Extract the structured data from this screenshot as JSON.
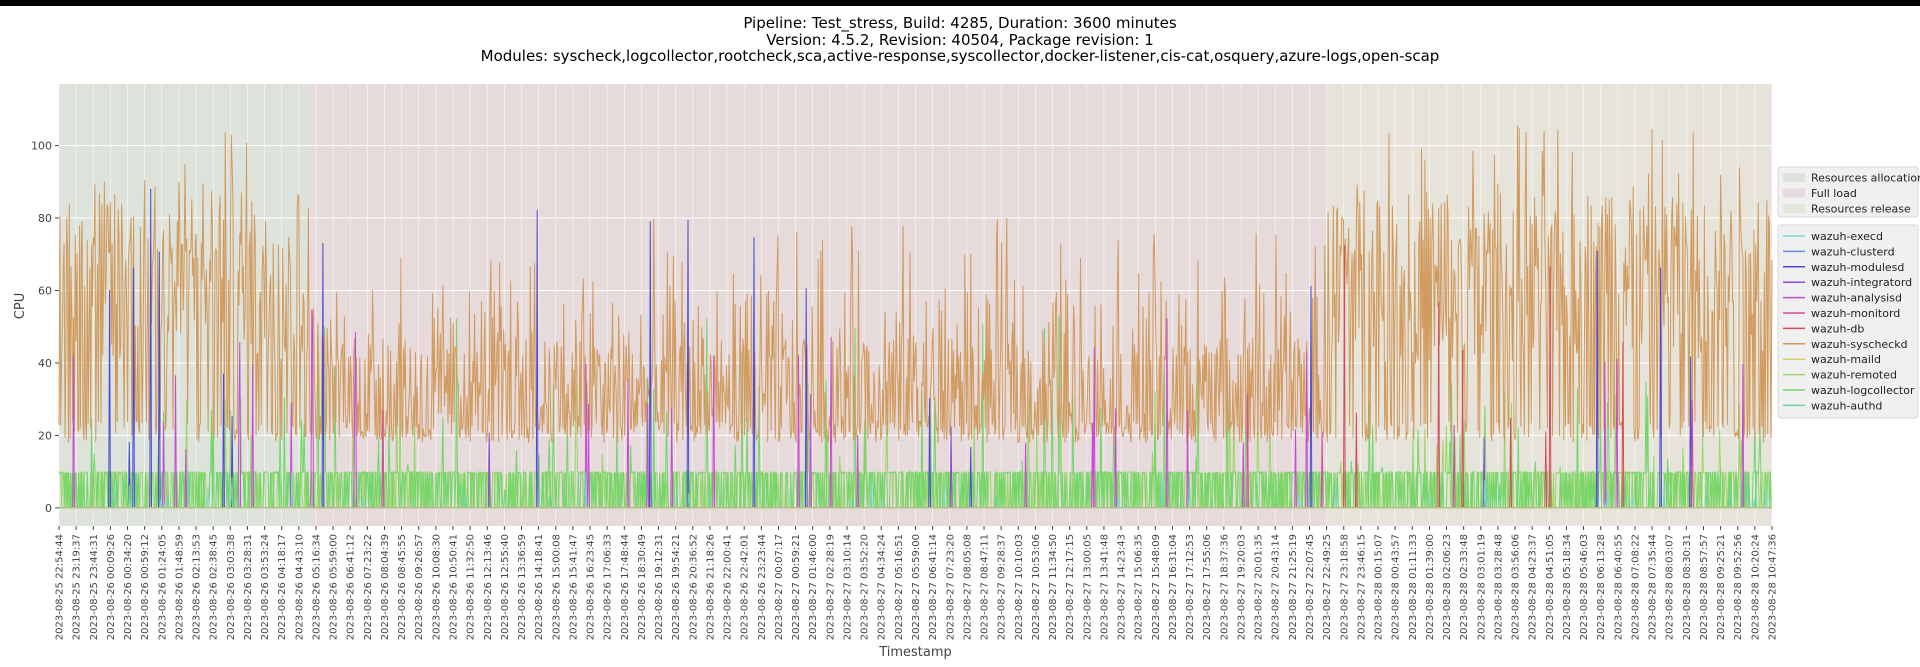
{
  "chart_data": {
    "type": "line",
    "title_lines": [
      "Pipeline: Test_stress, Build: 4285, Duration: 3600 minutes",
      "Version: 4.5.2, Revision: 40504, Package revision: 1",
      "Modules: syscheck,logcollector,rootcheck,sca,active-response,syscollector,docker-listener,cis-cat,osquery,azure-logs,open-scap"
    ],
    "xlabel": "Timestamp",
    "ylabel": "CPU",
    "ylim": [
      -5,
      117
    ],
    "yticks": [
      0,
      20,
      40,
      60,
      80,
      100
    ],
    "grid": true,
    "x_tick_labels": [
      "2023-08-25 22:54:44",
      "2023-08-25 23:19:37",
      "2023-08-25 23:44:31",
      "2023-08-26 00:09:26",
      "2023-08-26 00:34:20",
      "2023-08-26 00:59:12",
      "2023-08-26 01:24:05",
      "2023-08-26 01:48:59",
      "2023-08-26 02:13:53",
      "2023-08-26 02:38:45",
      "2023-08-26 03:03:38",
      "2023-08-26 03:28:31",
      "2023-08-26 03:53:24",
      "2023-08-26 04:18:17",
      "2023-08-26 04:43:10",
      "2023-08-26 05:16:34",
      "2023-08-26 05:59:00",
      "2023-08-26 06:41:12",
      "2023-08-26 07:23:22",
      "2023-08-26 08:04:39",
      "2023-08-26 08:45:55",
      "2023-08-26 09:26:57",
      "2023-08-26 10:08:30",
      "2023-08-26 10:50:41",
      "2023-08-26 11:32:50",
      "2023-08-26 12:13:46",
      "2023-08-26 12:55:40",
      "2023-08-26 13:36:59",
      "2023-08-26 14:18:41",
      "2023-08-26 15:00:08",
      "2023-08-26 15:41:47",
      "2023-08-26 16:23:45",
      "2023-08-26 17:06:33",
      "2023-08-26 17:48:44",
      "2023-08-26 18:30:49",
      "2023-08-26 19:12:31",
      "2023-08-26 19:54:21",
      "2023-08-26 20:36:52",
      "2023-08-26 21:18:26",
      "2023-08-26 22:00:41",
      "2023-08-26 22:42:01",
      "2023-08-26 23:23:44",
      "2023-08-27 00:07:17",
      "2023-08-27 00:59:21",
      "2023-08-27 01:46:00",
      "2023-08-27 02:28:19",
      "2023-08-27 03:10:14",
      "2023-08-27 03:52:20",
      "2023-08-27 04:34:24",
      "2023-08-27 05:16:51",
      "2023-08-27 05:59:00",
      "2023-08-27 06:41:14",
      "2023-08-27 07:23:20",
      "2023-08-27 08:05:08",
      "2023-08-27 08:47:11",
      "2023-08-27 09:28:37",
      "2023-08-27 10:10:03",
      "2023-08-27 10:53:06",
      "2023-08-27 11:34:50",
      "2023-08-27 12:17:15",
      "2023-08-27 13:00:05",
      "2023-08-27 13:41:48",
      "2023-08-27 14:23:43",
      "2023-08-27 15:06:35",
      "2023-08-27 15:48:09",
      "2023-08-27 16:31:04",
      "2023-08-27 17:12:53",
      "2023-08-27 17:55:06",
      "2023-08-27 18:37:36",
      "2023-08-27 19:20:03",
      "2023-08-27 20:01:35",
      "2023-08-27 20:43:14",
      "2023-08-27 21:25:19",
      "2023-08-27 22:07:45",
      "2023-08-27 22:49:25",
      "2023-08-27 23:18:58",
      "2023-08-27 23:46:15",
      "2023-08-28 00:15:07",
      "2023-08-28 00:43:57",
      "2023-08-28 01:11:33",
      "2023-08-28 01:39:00",
      "2023-08-28 02:06:23",
      "2023-08-28 02:33:48",
      "2023-08-28 03:01:19",
      "2023-08-28 03:28:48",
      "2023-08-28 03:56:06",
      "2023-08-28 04:23:37",
      "2023-08-28 04:51:05",
      "2023-08-28 05:18:34",
      "2023-08-28 05:46:03",
      "2023-08-28 06:13:28",
      "2023-08-28 06:40:55",
      "2023-08-28 07:08:22",
      "2023-08-28 07:35:44",
      "2023-08-28 08:03:07",
      "2023-08-28 08:30:31",
      "2023-08-28 08:57:57",
      "2023-08-28 09:25:21",
      "2023-08-28 09:52:56",
      "2023-08-28 10:20:24",
      "2023-08-28 10:47:36"
    ],
    "phases": [
      {
        "name": "Resources allocation",
        "start_tick": 0,
        "end_tick": 14.6,
        "color": "#dde3db"
      },
      {
        "name": "Full load",
        "start_tick": 14.6,
        "end_tick": 74,
        "color": "#e6dadb"
      },
      {
        "name": "Resources release",
        "start_tick": 74,
        "end_tick": 100,
        "color": "#e6e4da"
      }
    ],
    "series_summary": [
      {
        "name": "wazuh-execd",
        "color": "#7fd6d0",
        "typical": [
          0,
          1
        ],
        "peak": 10
      },
      {
        "name": "wazuh-clusterd",
        "color": "#6a8fe0",
        "typical": [
          0,
          0
        ],
        "peak": 2
      },
      {
        "name": "wazuh-modulesd",
        "color": "#4a4ad6",
        "typical": [
          0,
          2
        ],
        "peak": 90
      },
      {
        "name": "wazuh-integratord",
        "color": "#8a4ad6",
        "typical": [
          0,
          0
        ],
        "peak": 2
      },
      {
        "name": "wazuh-analysisd",
        "color": "#c84ad6",
        "typical": [
          0,
          5
        ],
        "peak": 55
      },
      {
        "name": "wazuh-monitord",
        "color": "#d64aa0",
        "typical": [
          0,
          0
        ],
        "peak": 2
      },
      {
        "name": "wazuh-db",
        "color": "#d64a5a",
        "typical": [
          0,
          5
        ],
        "peak": 88
      },
      {
        "name": "wazuh-syscheckd",
        "color": "#d19a5e",
        "typical": [
          18,
          55
        ],
        "peak": 111
      },
      {
        "name": "wazuh-maild",
        "color": "#d6d06a",
        "typical": [
          0,
          0
        ],
        "peak": 1
      },
      {
        "name": "wazuh-remoted",
        "color": "#9bd66a",
        "typical": [
          0,
          10
        ],
        "peak": 40
      },
      {
        "name": "wazuh-logcollector",
        "color": "#72d66a",
        "typical": [
          0,
          10
        ],
        "peak": 58
      },
      {
        "name": "wazuh-authd",
        "color": "#6ad69a",
        "typical": [
          0,
          1
        ],
        "peak": 10
      }
    ],
    "phase_legend_placement": "right, upper",
    "series_legend_placement": "right, middle"
  }
}
